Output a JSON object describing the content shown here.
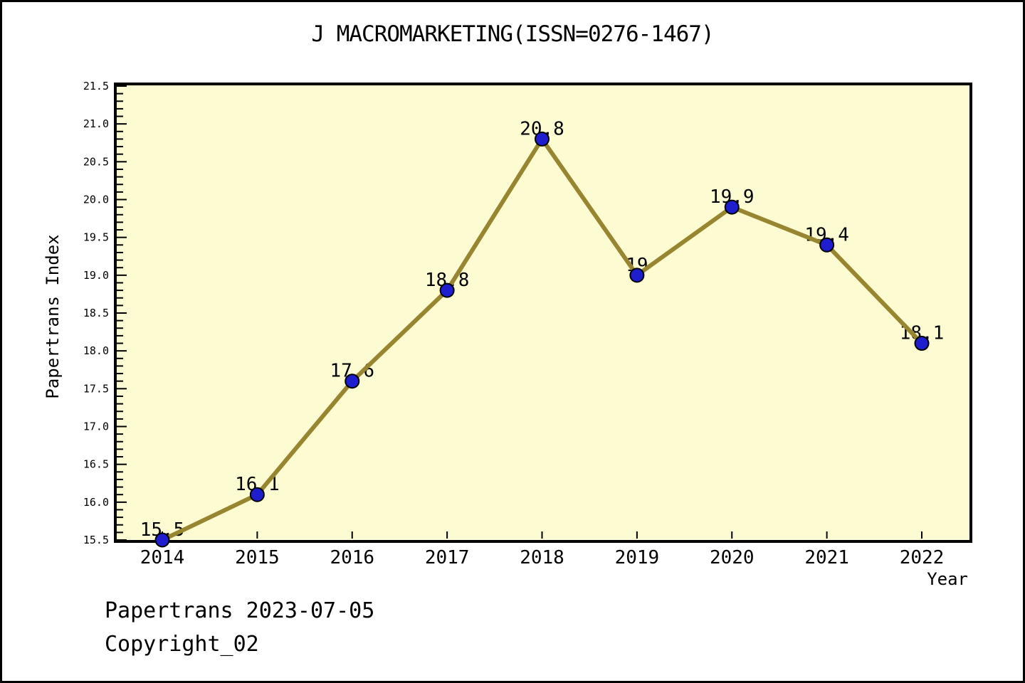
{
  "title": "J MACROMARKETING(ISSN=0276-1467)",
  "footer": {
    "line1": "Papertrans 2023-07-05",
    "line2": "Copyright_02"
  },
  "chart_data": {
    "type": "line",
    "title": "J MACROMARKETING(ISSN=0276-1467)",
    "xlabel": "Year",
    "ylabel": "Papertrans Index",
    "x": [
      2014,
      2015,
      2016,
      2017,
      2018,
      2019,
      2020,
      2021,
      2022
    ],
    "values": [
      15.5,
      16.1,
      17.6,
      18.8,
      20.8,
      19.0,
      19.9,
      19.4,
      18.1
    ],
    "point_labels": [
      "15.5",
      "16.1",
      "17.6",
      "18.8",
      "20.8",
      "19",
      "19.9",
      "19.4",
      "18.1"
    ],
    "ylim": [
      15.5,
      21.5
    ],
    "ytick_step": 0.5,
    "yminor_step": 0.1,
    "xlim": [
      2013.5,
      2022.55
    ],
    "grid": "off",
    "legend": "none",
    "colors": {
      "plot_bg": "#FDFBD2",
      "line": "#97852F",
      "marker_fill": "#1E1ECF",
      "marker_edge": "#000000",
      "axis": "#000000",
      "text": "#000000"
    }
  }
}
